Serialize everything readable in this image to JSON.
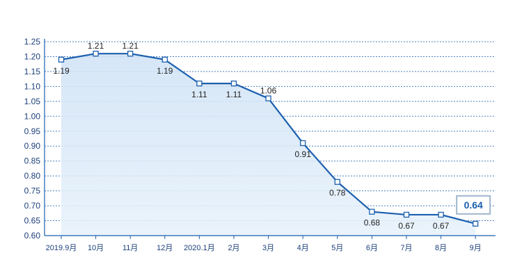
{
  "chart_data": {
    "type": "line",
    "categories": [
      "2019.9月",
      "10月",
      "11月",
      "12月",
      "2020.1月",
      "2月",
      "3月",
      "4月",
      "5月",
      "6月",
      "7月",
      "8月",
      "9月"
    ],
    "series": [
      {
        "values": [
          1.19,
          1.21,
          1.21,
          1.19,
          1.11,
          1.11,
          1.06,
          0.91,
          0.78,
          0.68,
          0.67,
          0.67,
          0.64
        ]
      }
    ],
    "data_labels": [
      "1.19",
      "1.21",
      "1.21",
      "1.19",
      "1.11",
      "1.11",
      "1.06",
      "0.91",
      "0.78",
      "0.68",
      "0.67",
      "0.67",
      "0.64"
    ],
    "ylim": [
      0.6,
      1.25
    ],
    "yticks": [
      "0.60",
      "0.65",
      "0.70",
      "0.75",
      "0.80",
      "0.85",
      "0.90",
      "0.95",
      "1.00",
      "1.05",
      "1.10",
      "1.15",
      "1.20",
      "1.25"
    ],
    "grid": true,
    "highlight_index": 12,
    "colors": {
      "line": "#1b5fae",
      "grid": "#1b5fae",
      "axis_text": "#1b3f7a",
      "fill": "#d6e7f7"
    }
  }
}
